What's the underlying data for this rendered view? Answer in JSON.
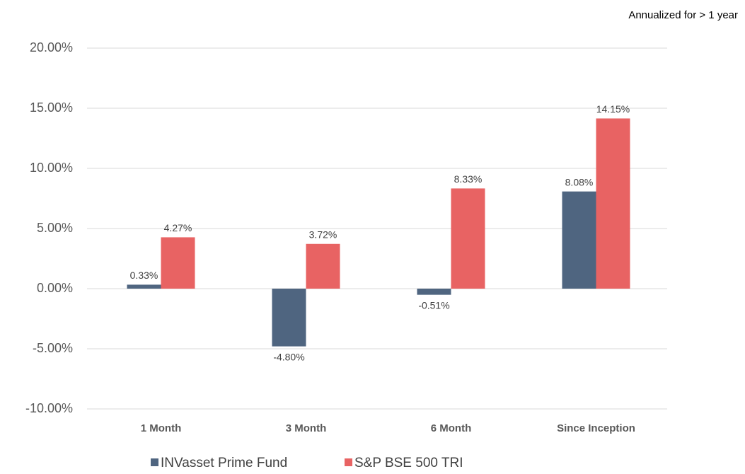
{
  "chart_data": {
    "type": "bar",
    "annotation": "Annualized for > 1 year",
    "categories": [
      "1 Month",
      "3 Month",
      "6 Month",
      "Since Inception"
    ],
    "series": [
      {
        "name": "INVasset Prime Fund",
        "color": "#4f6580",
        "values": [
          0.33,
          -4.8,
          -0.51,
          8.08
        ],
        "value_labels": [
          "0.33%",
          "-4.80%",
          "-0.51%",
          "8.08%"
        ]
      },
      {
        "name": "S&P BSE 500 TRI",
        "color": "#e86363",
        "values": [
          4.27,
          3.72,
          8.33,
          14.15
        ],
        "value_labels": [
          "4.27%",
          "3.72%",
          "8.33%",
          "14.15%"
        ]
      }
    ],
    "ylim": [
      -10,
      20
    ],
    "yticks": [
      {
        "value": -10,
        "label": "-10.00%"
      },
      {
        "value": -5,
        "label": "-5.00%"
      },
      {
        "value": 0,
        "label": "0.00%"
      },
      {
        "value": 5,
        "label": "5.00%"
      },
      {
        "value": 10,
        "label": "10.00%"
      },
      {
        "value": 15,
        "label": "15.00%"
      },
      {
        "value": 20,
        "label": "20.00%"
      }
    ],
    "grid": true,
    "legend": "bottom"
  }
}
